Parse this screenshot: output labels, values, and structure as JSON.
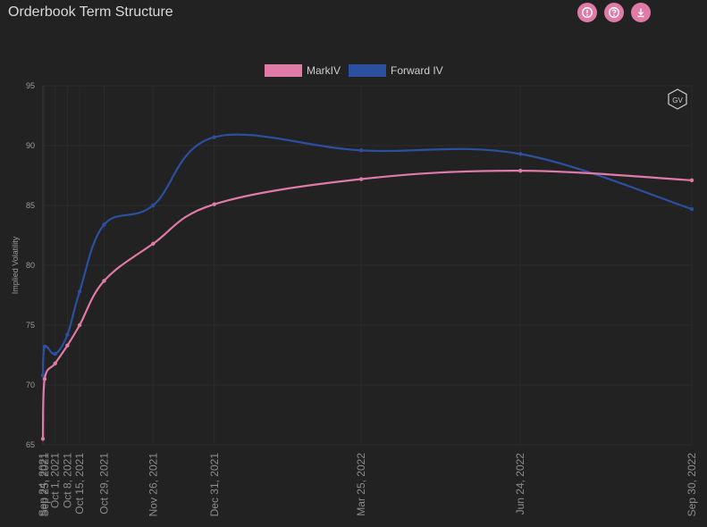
{
  "title": "Orderbook Term Structure",
  "toolbar": {
    "info_icon": "info-icon",
    "help_icon": "help-icon",
    "download_icon": "download-icon",
    "accent": "#e07aa7"
  },
  "watermark": "GV",
  "chart_data": {
    "type": "line",
    "ylabel": "Implied Volatility",
    "xlabel": "",
    "ylim": [
      65,
      95
    ],
    "yticks": [
      65,
      70,
      75,
      80,
      85,
      90,
      95
    ],
    "grid": true,
    "legend_placement": "top-center",
    "x": [
      "Sep 24, 2021",
      "Sep 25, 2021",
      "Oct 1, 2021",
      "Oct 8, 2021",
      "Oct 15, 2021",
      "Oct 29, 2021",
      "Nov 26, 2021",
      "Dec 31, 2021",
      "Mar 25, 2022",
      "Jun 24, 2022",
      "Sep 30, 2022"
    ],
    "xtick_labels": [
      "Sep 24, 2021",
      "Sep 25, 2021",
      "Oct 1, 2021",
      "Oct 8, 2021",
      "Oct 15, 2021",
      "Oct 29, 2021",
      "Nov 26, 2021",
      "Dec 31, 2021",
      "Mar 25, 2022",
      "Jun 24, 2022",
      "Sep 30, 2022"
    ],
    "series": [
      {
        "name": "MarkIV",
        "color": "#e07aa7",
        "values": [
          65.5,
          70.5,
          71.8,
          73.3,
          75.0,
          78.7,
          81.8,
          85.1,
          87.2,
          87.9,
          87.1
        ]
      },
      {
        "name": "Forward IV",
        "color": "#2b50a0",
        "values": [
          70.8,
          73.2,
          72.6,
          74.2,
          77.8,
          83.4,
          85.0,
          90.7,
          89.6,
          89.3,
          84.7
        ]
      }
    ]
  }
}
